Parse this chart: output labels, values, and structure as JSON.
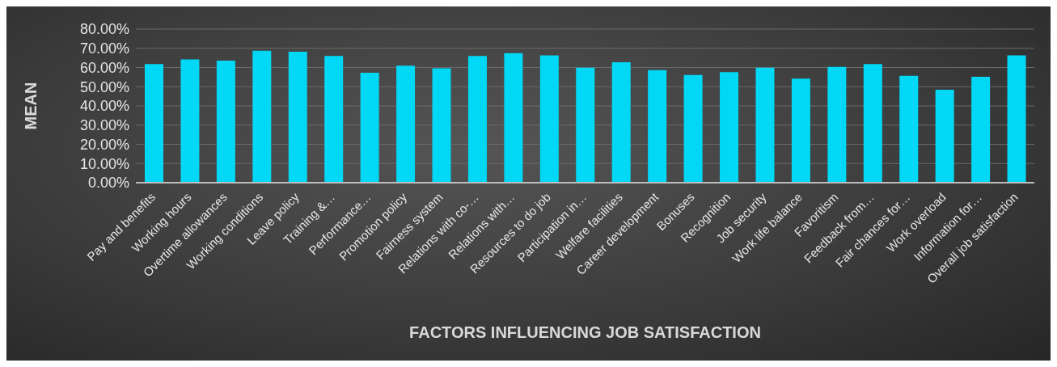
{
  "chart_data": {
    "type": "bar",
    "xlabel": "FACTORS INFLUENCING JOB SATISFACTION",
    "ylabel": "MEAN",
    "categories": [
      "Pay and benefits",
      "Working hours",
      "Overtime allowances",
      "Working conditions",
      "Leave policy",
      "Training &…",
      "Performance…",
      "Promotion policy",
      "Fairness system",
      "Relations with co-…",
      "Relations with…",
      "Resources to do job",
      "Participation in…",
      "Welfare facilities",
      "Career development",
      "Bonuses",
      "Recognition",
      "Job security",
      "Work life balance",
      "Favoritism",
      "Feedback from…",
      "Fair chances for…",
      "Work overload",
      "Information for…",
      "Overall job satisfaction"
    ],
    "values": [
      61.8,
      64.2,
      63.6,
      68.7,
      68.2,
      66.0,
      57.3,
      60.9,
      59.6,
      66.0,
      67.5,
      66.3,
      59.9,
      62.7,
      58.6,
      56.1,
      57.6,
      59.9,
      54.2,
      60.3,
      61.8,
      55.7,
      48.4,
      55.2,
      66.3
    ],
    "color": "#00d8f5",
    "ylim": [
      0,
      80
    ],
    "yticks": [
      {
        "value": 0,
        "label": "0.00%"
      },
      {
        "value": 10,
        "label": "10.00%"
      },
      {
        "value": 20,
        "label": "20.00%"
      },
      {
        "value": 30,
        "label": "30.00%"
      },
      {
        "value": 40,
        "label": "40.00%"
      },
      {
        "value": 50,
        "label": "50.00%"
      },
      {
        "value": 60,
        "label": "60.00%"
      },
      {
        "value": 70,
        "label": "70.00%"
      },
      {
        "value": 80,
        "label": "80.00%"
      }
    ],
    "grid": "y"
  }
}
